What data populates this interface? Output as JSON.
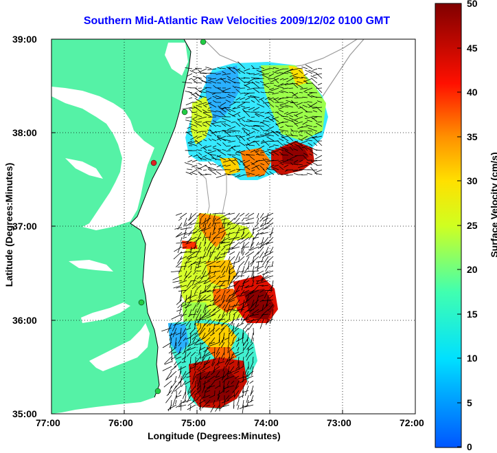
{
  "title": "Southern Mid-Atlantic Raw Velocities 2009/12/02 0100 GMT",
  "axes": {
    "xlabel": "Longitude (Degrees:Minutes)",
    "ylabel": "Latitude (Degrees:Minutes)",
    "x_ticks": [
      "77:00",
      "76:00",
      "75:00",
      "74:00",
      "73:00",
      "72:00"
    ],
    "y_ticks": [
      "39:00",
      "38:00",
      "37:00",
      "36:00",
      "35:00"
    ],
    "xlim": [
      -77,
      -72
    ],
    "ylim": [
      35,
      39
    ],
    "grid": "dotted"
  },
  "colorbar": {
    "label": "Surface Velocity (cm/s)",
    "ticks": [
      "50",
      "45",
      "40",
      "35",
      "30",
      "25",
      "20",
      "15",
      "10",
      "5",
      "0"
    ],
    "range": [
      0,
      50
    ]
  },
  "colors": {
    "land": "#55f2a6",
    "title": "#0000ff",
    "stations": "#22cc44",
    "station_alert": "#dd2222"
  }
}
